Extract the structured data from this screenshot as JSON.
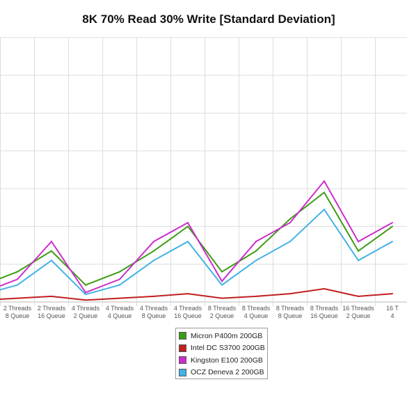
{
  "chart_data": {
    "type": "line",
    "title": "8K 70% Read 30% Write [Standard Deviation]",
    "xlabel": "",
    "ylabel": "",
    "ylim": [
      0,
      7
    ],
    "y_ticks": [
      0,
      1,
      2,
      3,
      4,
      5,
      6,
      7
    ],
    "grid": true,
    "legend": "bottom-center",
    "categories": [
      [
        "Threads",
        "Queue"
      ],
      [
        "2 Threads",
        "8 Queue"
      ],
      [
        "2 Threads",
        "16 Queue"
      ],
      [
        "4 Threads",
        "2 Queue"
      ],
      [
        "4 Threads",
        "4 Queue"
      ],
      [
        "4 Threads",
        "8 Queue"
      ],
      [
        "4 Threads",
        "16 Queue"
      ],
      [
        "8 Threads",
        "2 Queue"
      ],
      [
        "8 Threads",
        "4 Queue"
      ],
      [
        "8 Threads",
        "8 Queue"
      ],
      [
        "8 Threads",
        "16 Queue"
      ],
      [
        "16 Threads",
        "2 Queue"
      ],
      [
        "16 T",
        "4"
      ]
    ],
    "series": [
      {
        "name": "Micron P400m 200GB",
        "color": "#3c9c14",
        "values": [
          0.45,
          0.8,
          1.35,
          0.45,
          0.8,
          1.35,
          2.0,
          0.8,
          1.35,
          2.2,
          2.9,
          1.35,
          2.0
        ]
      },
      {
        "name": "Intel DC S3700 200GB",
        "color": "#c01f1f",
        "values": [
          0.05,
          0.1,
          0.15,
          0.05,
          0.1,
          0.15,
          0.22,
          0.1,
          0.15,
          0.22,
          0.35,
          0.15,
          0.22
        ]
      },
      {
        "name": "Kingston E100 200GB",
        "color": "#cc2ecc",
        "values": [
          0.25,
          0.6,
          1.6,
          0.25,
          0.6,
          1.6,
          2.1,
          0.55,
          1.6,
          2.1,
          3.2,
          1.6,
          2.1
        ]
      },
      {
        "name": "OCZ Deneva 2 200GB",
        "color": "#41b2e6",
        "values": [
          0.2,
          0.45,
          1.1,
          0.2,
          0.45,
          1.1,
          1.6,
          0.45,
          1.1,
          1.6,
          2.45,
          1.1,
          1.6
        ]
      }
    ]
  }
}
